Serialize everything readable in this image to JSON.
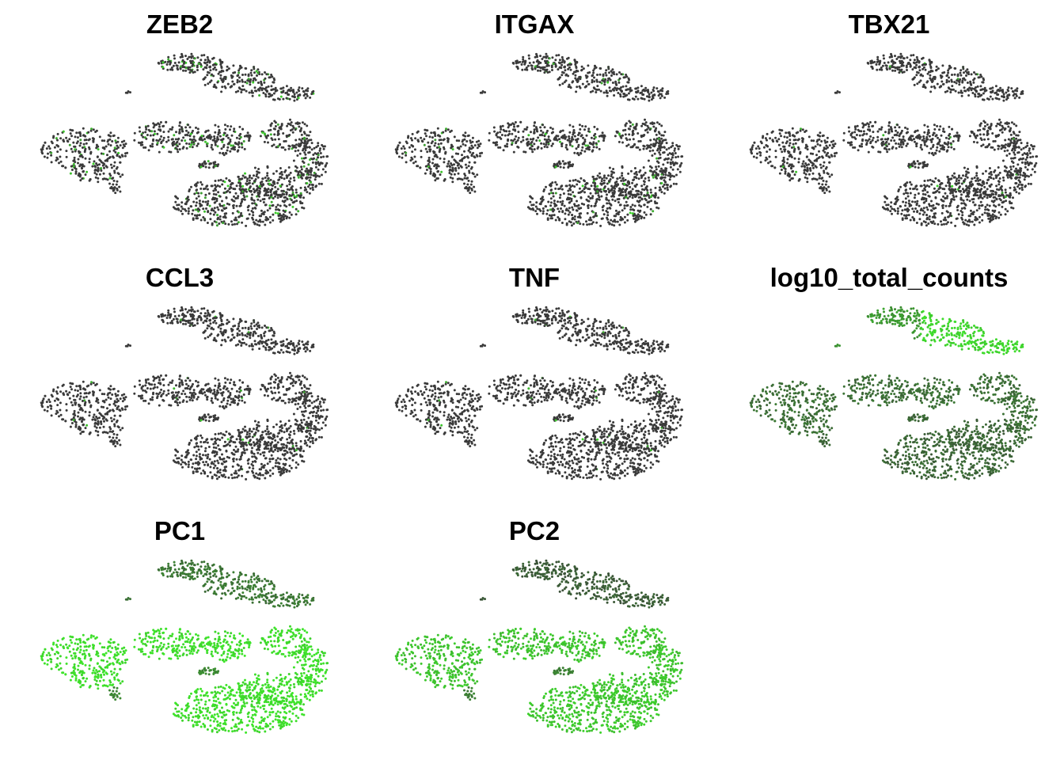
{
  "chart_data": {
    "type": "scatter",
    "layout": "3x3 grid of small multiples",
    "colors": {
      "low": "#3a3a3a",
      "mid": "#3f7a35",
      "high": "#3ee62a"
    },
    "legend": "none",
    "grid": false,
    "axes": "hidden",
    "panels": [
      {
        "title": "ZEB2",
        "expression_by_cluster": {
          "top": 0.0,
          "left": 0.1,
          "center": 0.15,
          "right": 0.1,
          "bottom": 0.12,
          "pocket": 0.2
        },
        "speckle_fraction": 0.09
      },
      {
        "title": "ITGAX",
        "expression_by_cluster": {
          "top": 0.0,
          "left": 0.04,
          "center": 0.08,
          "right": 0.05,
          "bottom": 0.0,
          "pocket": 0.1
        },
        "speckle_fraction": 0.04
      },
      {
        "title": "TBX21",
        "expression_by_cluster": {
          "top": 0.0,
          "left": 0.02,
          "center": 0.02,
          "right": 0.03,
          "bottom": 0.0,
          "pocket": 0.0
        },
        "speckle_fraction": 0.015
      },
      {
        "title": "CCL3",
        "expression_by_cluster": {
          "top": 0.02,
          "left": 0.01,
          "center": 0.02,
          "right": 0.02,
          "bottom": 0.0,
          "pocket": 0.0
        },
        "speckle_fraction": 0.015
      },
      {
        "title": "TNF",
        "expression_by_cluster": {
          "top": 0.0,
          "left": 0.02,
          "center": 0.02,
          "right": 0.03,
          "bottom": 0.02,
          "pocket": 0.0
        },
        "speckle_fraction": 0.015
      },
      {
        "title": "log10_total_counts",
        "expression_by_cluster": {
          "top": 0.55,
          "left": 0.3,
          "center": 0.3,
          "right": 0.3,
          "bottom": 0.25,
          "pocket": 0.25
        },
        "top_right_boost": 0.9,
        "speckle_fraction": 0.0
      },
      {
        "title": "PC1",
        "expression_by_cluster": {
          "top": 0.35,
          "left": 0.95,
          "center": 0.95,
          "right": 0.95,
          "bottom": 0.95,
          "pocket": 0.45
        },
        "speckle_fraction": 0.0
      },
      {
        "title": "PC2",
        "expression_by_cluster": {
          "top": 0.2,
          "left": 0.8,
          "center": 0.8,
          "right": 0.8,
          "bottom": 0.82,
          "pocket": 0.4
        },
        "speckle_fraction": 0.0
      }
    ]
  }
}
